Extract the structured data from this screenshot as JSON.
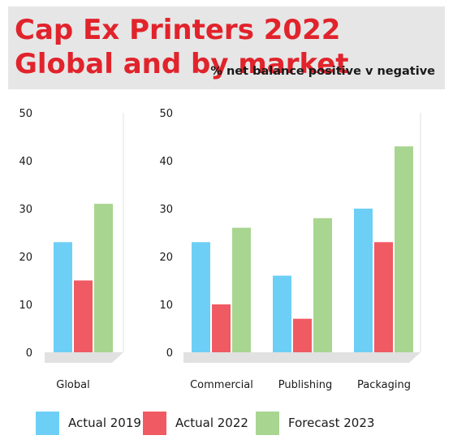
{
  "header": {
    "title": "Cap Ex Printers 2022 Global and by market",
    "subtitle": "% net balance positive v negative"
  },
  "colors": {
    "actual_2019": "#6dcff6",
    "actual_2022": "#f05a63",
    "forecast_2023": "#a8d590",
    "panel": "#e6e6e6",
    "title": "#e1232b"
  },
  "chart_data": [
    {
      "type": "bar",
      "categories": [
        "Global"
      ],
      "ylim": [
        0,
        50
      ],
      "yticks": [
        0,
        10,
        20,
        30,
        40,
        50
      ],
      "grid": false,
      "series": [
        {
          "name": "Actual 2019",
          "values": [
            23
          ]
        },
        {
          "name": "Actual 2022",
          "values": [
            15
          ]
        },
        {
          "name": "Forecast 2023",
          "values": [
            31
          ]
        }
      ]
    },
    {
      "type": "bar",
      "categories": [
        "Commercial",
        "Publishing",
        "Packaging"
      ],
      "ylim": [
        0,
        50
      ],
      "yticks": [
        0,
        10,
        20,
        30,
        40,
        50
      ],
      "grid": false,
      "series": [
        {
          "name": "Actual 2019",
          "values": [
            23,
            16,
            30
          ]
        },
        {
          "name": "Actual 2022",
          "values": [
            10,
            7,
            23
          ]
        },
        {
          "name": "Forecast 2023",
          "values": [
            26,
            28,
            43
          ]
        }
      ]
    }
  ],
  "legend": {
    "placement": "bottom",
    "items": [
      {
        "label": "Actual 2019",
        "color": "#6dcff6"
      },
      {
        "label": "Actual 2022",
        "color": "#f05a63"
      },
      {
        "label": "Forecast 2023",
        "color": "#a8d590"
      }
    ]
  }
}
